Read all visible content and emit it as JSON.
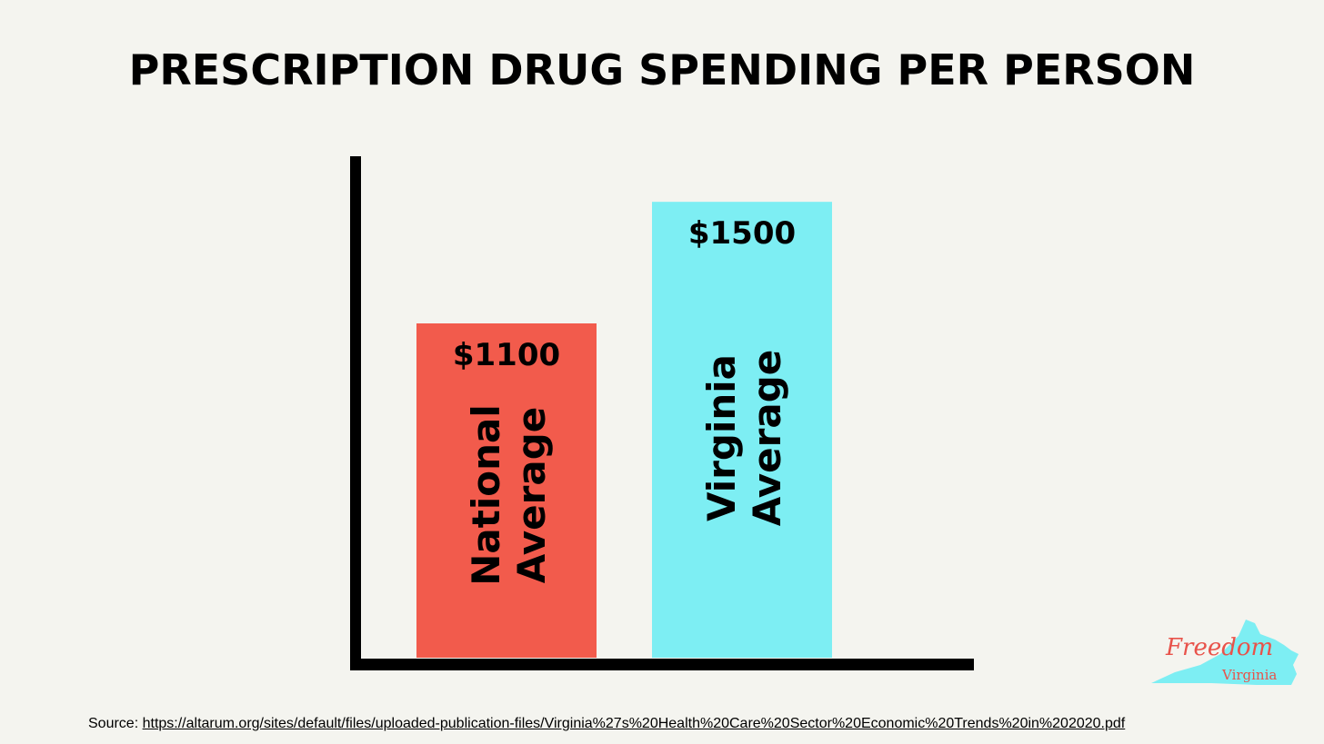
{
  "title": "PRESCRIPTION DRUG SPENDING PER PERSON",
  "chart_data": {
    "type": "bar",
    "categories": [
      "National Average",
      "Virginia Average"
    ],
    "category_lines": [
      [
        "National",
        "Average"
      ],
      [
        "Virginia",
        "Average"
      ]
    ],
    "values": [
      1100,
      1500
    ],
    "value_labels": [
      "$1100",
      "$1500"
    ],
    "colors": [
      "#f25b4c",
      "#7deef3"
    ],
    "title": "PRESCRIPTION DRUG SPENDING PER PERSON",
    "xlabel": "",
    "ylabel": "",
    "ylim": [
      0,
      1650
    ],
    "grid": false,
    "legend": "none"
  },
  "source": {
    "prefix": "Source: ",
    "url": "https://altarum.org/sites/default/files/uploaded-publication-files/Virginia%27s%20Health%20Care%20Sector%20Economic%20Trends%20in%202020.pdf"
  },
  "logo": {
    "line1": "Freedom",
    "line2": "Virginia",
    "shape_color": "#7deef3",
    "text_color": "#e8524a"
  }
}
